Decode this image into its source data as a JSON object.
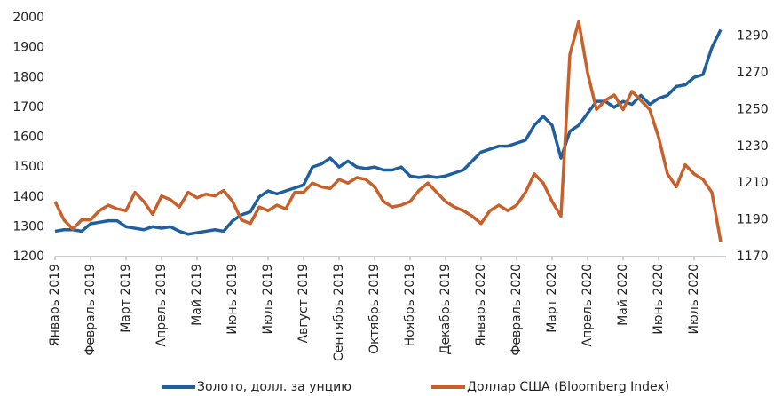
{
  "chart_data": {
    "type": "line",
    "categories": [
      "Январь 2019",
      null,
      null,
      null,
      "Февраль 2019",
      null,
      null,
      null,
      "Март 2019",
      null,
      null,
      null,
      "Апрель 2019",
      null,
      null,
      null,
      "Май 2019",
      null,
      null,
      null,
      "Июнь 2019",
      null,
      null,
      null,
      "Июль 2019",
      null,
      null,
      null,
      "Август 2019",
      null,
      null,
      null,
      "Сентябрь 2019",
      null,
      null,
      null,
      "Октябрь 2019",
      null,
      null,
      null,
      "Ноябрь 2019",
      null,
      null,
      null,
      "Декабрь 2019",
      null,
      null,
      null,
      "Январь 2020",
      null,
      null,
      null,
      "Февраль 2020",
      null,
      null,
      null,
      "Март 2020",
      null,
      null,
      null,
      "Апрель 2020",
      null,
      null,
      null,
      "Май 2020",
      null,
      null,
      null,
      "Июнь 2020",
      null,
      null,
      null,
      "Июль 2020",
      null,
      null,
      null
    ],
    "series": [
      {
        "name": "Золото, долл. за унцию",
        "color": "#1f5f9e",
        "axis": "y",
        "values": [
          1285,
          1290,
          1290,
          1285,
          1310,
          1315,
          1320,
          1320,
          1300,
          1295,
          1290,
          1300,
          1295,
          1300,
          1285,
          1275,
          1280,
          1285,
          1290,
          1285,
          1320,
          1340,
          1350,
          1400,
          1420,
          1410,
          1420,
          1430,
          1440,
          1500,
          1510,
          1530,
          1500,
          1520,
          1500,
          1495,
          1500,
          1490,
          1490,
          1500,
          1470,
          1465,
          1470,
          1465,
          1470,
          1480,
          1490,
          1520,
          1550,
          1560,
          1570,
          1570,
          1580,
          1590,
          1640,
          1670,
          1640,
          1530,
          1620,
          1640,
          1680,
          1720,
          1720,
          1700,
          1720,
          1710,
          1740,
          1710,
          1730,
          1740,
          1770,
          1775,
          1800,
          1810,
          1900,
          1960
        ]
      },
      {
        "name": "Доллар США (Bloomberg Index)",
        "color": "#c8602a",
        "axis": "y2",
        "values": [
          1200,
          1190,
          1185,
          1190,
          1190,
          1195,
          1198,
          1196,
          1195,
          1205,
          1200,
          1193,
          1203,
          1201,
          1197,
          1205,
          1202,
          1204,
          1203,
          1206,
          1200,
          1190,
          1188,
          1197,
          1195,
          1198,
          1196,
          1205,
          1205,
          1210,
          1208,
          1207,
          1212,
          1210,
          1213,
          1212,
          1208,
          1200,
          1197,
          1198,
          1200,
          1206,
          1210,
          1205,
          1200,
          1197,
          1195,
          1192,
          1188,
          1195,
          1198,
          1195,
          1198,
          1205,
          1215,
          1210,
          1200,
          1192,
          1280,
          1298,
          1270,
          1250,
          1255,
          1258,
          1250,
          1260,
          1255,
          1250,
          1235,
          1215,
          1208,
          1220,
          1215,
          1212,
          1205,
          1178
        ]
      }
    ],
    "ylim": [
      1200,
      2000
    ],
    "yticks": [
      1200,
      1300,
      1400,
      1500,
      1600,
      1700,
      1800,
      1900,
      2000
    ],
    "y2lim": [
      1170,
      1300
    ],
    "y2ticks": [
      1170,
      1190,
      1210,
      1230,
      1250,
      1270,
      1290
    ],
    "legend": "bottom"
  }
}
